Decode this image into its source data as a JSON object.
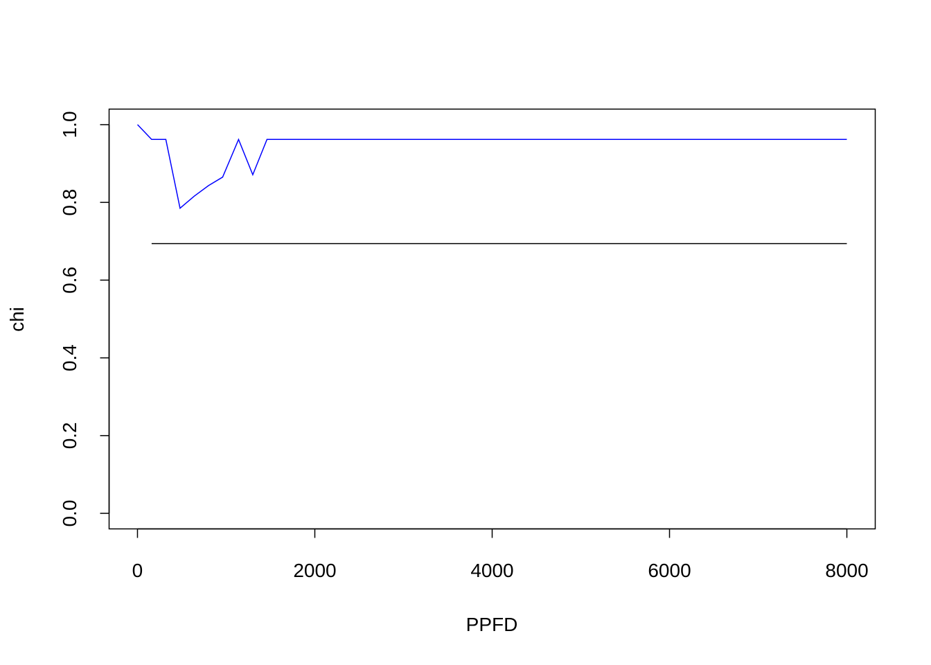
{
  "chart_data": {
    "type": "line",
    "title": "",
    "xlabel": "PPFD",
    "ylabel": "chi",
    "xlim": [
      -320,
      8320
    ],
    "ylim": [
      -0.04,
      1.04
    ],
    "xticks": [
      0,
      2000,
      4000,
      6000,
      8000
    ],
    "xtick_labels": [
      "0",
      "2000",
      "4000",
      "6000",
      "8000"
    ],
    "yticks": [
      0.0,
      0.2,
      0.4,
      0.6,
      0.8,
      1.0
    ],
    "ytick_labels": [
      "0.0",
      "0.2",
      "0.4",
      "0.6",
      "0.8",
      "1.0"
    ],
    "grid": false,
    "legend": "none",
    "series": [
      {
        "color": "#0000ff",
        "x": [
          0,
          160,
          320,
          480,
          640,
          800,
          960,
          1140,
          1300,
          1460,
          1620,
          8000
        ],
        "y": [
          1.0,
          0.962,
          0.962,
          0.785,
          0.816,
          0.843,
          0.865,
          0.962,
          0.871,
          0.962,
          0.962,
          0.962
        ]
      },
      {
        "color": "#000000",
        "x": [
          160,
          8000
        ],
        "y": [
          0.694,
          0.694
        ]
      }
    ]
  }
}
